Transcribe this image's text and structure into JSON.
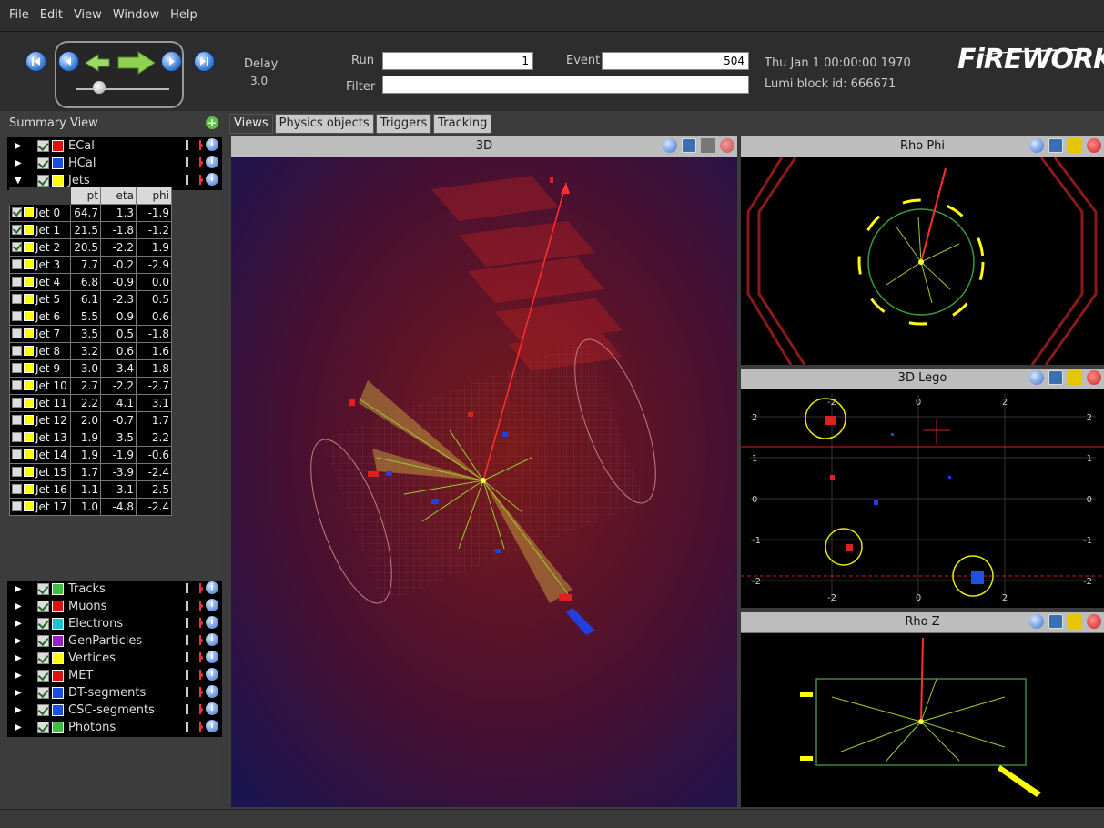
{
  "menu": [
    "File",
    "Edit",
    "View",
    "Window",
    "Help"
  ],
  "toolbar": {
    "delay_label": "Delay",
    "delay_value": "3.0",
    "run_label": "Run",
    "run_value": "1",
    "event_label": "Event",
    "event_value": "504",
    "filter_label": "Filter",
    "filter_value": "",
    "datetime": "Thu Jan  1 00:00:00 1970",
    "lumi": "Lumi block id: 666671",
    "logo": "iREWORKS",
    "logo_initial": "F"
  },
  "summary": {
    "title": "Summary View",
    "top_items": [
      {
        "label": "ECal",
        "color": "#e01010",
        "expanded": false
      },
      {
        "label": "HCal",
        "color": "#1a4fe0",
        "expanded": false
      },
      {
        "label": "Jets",
        "color": "#ffff00",
        "expanded": true
      }
    ],
    "jets_table": {
      "columns": [
        "pt",
        "eta",
        "phi"
      ],
      "rows": [
        {
          "name": "Jet 0",
          "checked": true,
          "pt": "64.7",
          "eta": "1.3",
          "phi": "-1.9"
        },
        {
          "name": "Jet 1",
          "checked": true,
          "pt": "21.5",
          "eta": "-1.8",
          "phi": "-1.2"
        },
        {
          "name": "Jet 2",
          "checked": true,
          "pt": "20.5",
          "eta": "-2.2",
          "phi": "1.9"
        },
        {
          "name": "Jet 3",
          "checked": false,
          "pt": "7.7",
          "eta": "-0.2",
          "phi": "-2.9"
        },
        {
          "name": "Jet 4",
          "checked": false,
          "pt": "6.8",
          "eta": "-0.9",
          "phi": "0.0"
        },
        {
          "name": "Jet 5",
          "checked": false,
          "pt": "6.1",
          "eta": "-2.3",
          "phi": "0.5"
        },
        {
          "name": "Jet 6",
          "checked": false,
          "pt": "5.5",
          "eta": "0.9",
          "phi": "0.6"
        },
        {
          "name": "Jet 7",
          "checked": false,
          "pt": "3.5",
          "eta": "0.5",
          "phi": "-1.8"
        },
        {
          "name": "Jet 8",
          "checked": false,
          "pt": "3.2",
          "eta": "0.6",
          "phi": "1.6"
        },
        {
          "name": "Jet 9",
          "checked": false,
          "pt": "3.0",
          "eta": "3.4",
          "phi": "-1.8"
        },
        {
          "name": "Jet 10",
          "checked": false,
          "pt": "2.7",
          "eta": "-2.2",
          "phi": "-2.7"
        },
        {
          "name": "Jet 11",
          "checked": false,
          "pt": "2.2",
          "eta": "4.1",
          "phi": "3.1"
        },
        {
          "name": "Jet 12",
          "checked": false,
          "pt": "2.0",
          "eta": "-0.7",
          "phi": "1.7"
        },
        {
          "name": "Jet 13",
          "checked": false,
          "pt": "1.9",
          "eta": "3.5",
          "phi": "2.2"
        },
        {
          "name": "Jet 14",
          "checked": false,
          "pt": "1.9",
          "eta": "-1.9",
          "phi": "-0.6"
        },
        {
          "name": "Jet 15",
          "checked": false,
          "pt": "1.7",
          "eta": "-3.9",
          "phi": "-2.4"
        },
        {
          "name": "Jet 16",
          "checked": false,
          "pt": "1.1",
          "eta": "-3.1",
          "phi": "2.5"
        },
        {
          "name": "Jet 17",
          "checked": false,
          "pt": "1.0",
          "eta": "-4.8",
          "phi": "-2.4"
        }
      ]
    },
    "bottom_items": [
      {
        "label": "Tracks",
        "color": "#3fbf3f"
      },
      {
        "label": "Muons",
        "color": "#e01010"
      },
      {
        "label": "Electrons",
        "color": "#10c8d8"
      },
      {
        "label": "GenParticles",
        "color": "#9a20c8"
      },
      {
        "label": "Vertices",
        "color": "#ffff00"
      },
      {
        "label": "MET",
        "color": "#e01010"
      },
      {
        "label": "DT-segments",
        "color": "#1a4fe0"
      },
      {
        "label": "CSC-segments",
        "color": "#1a4fe0"
      },
      {
        "label": "Photons",
        "color": "#3fbf3f"
      }
    ]
  },
  "tabs": [
    "Views",
    "Physics objects",
    "Triggers",
    "Tracking"
  ],
  "views": {
    "main": "3D",
    "rhophi": "Rho Phi",
    "lego": "3D Lego",
    "rhoz": "Rho Z"
  },
  "lego_ticks": {
    "top": [
      "-2",
      "0",
      "2"
    ],
    "bottom": [
      "-2",
      "0",
      "2"
    ],
    "left": [
      "2",
      "1",
      "0",
      "-1",
      "-2"
    ],
    "right": [
      "2",
      "1",
      "0",
      "-1",
      "-2"
    ]
  }
}
